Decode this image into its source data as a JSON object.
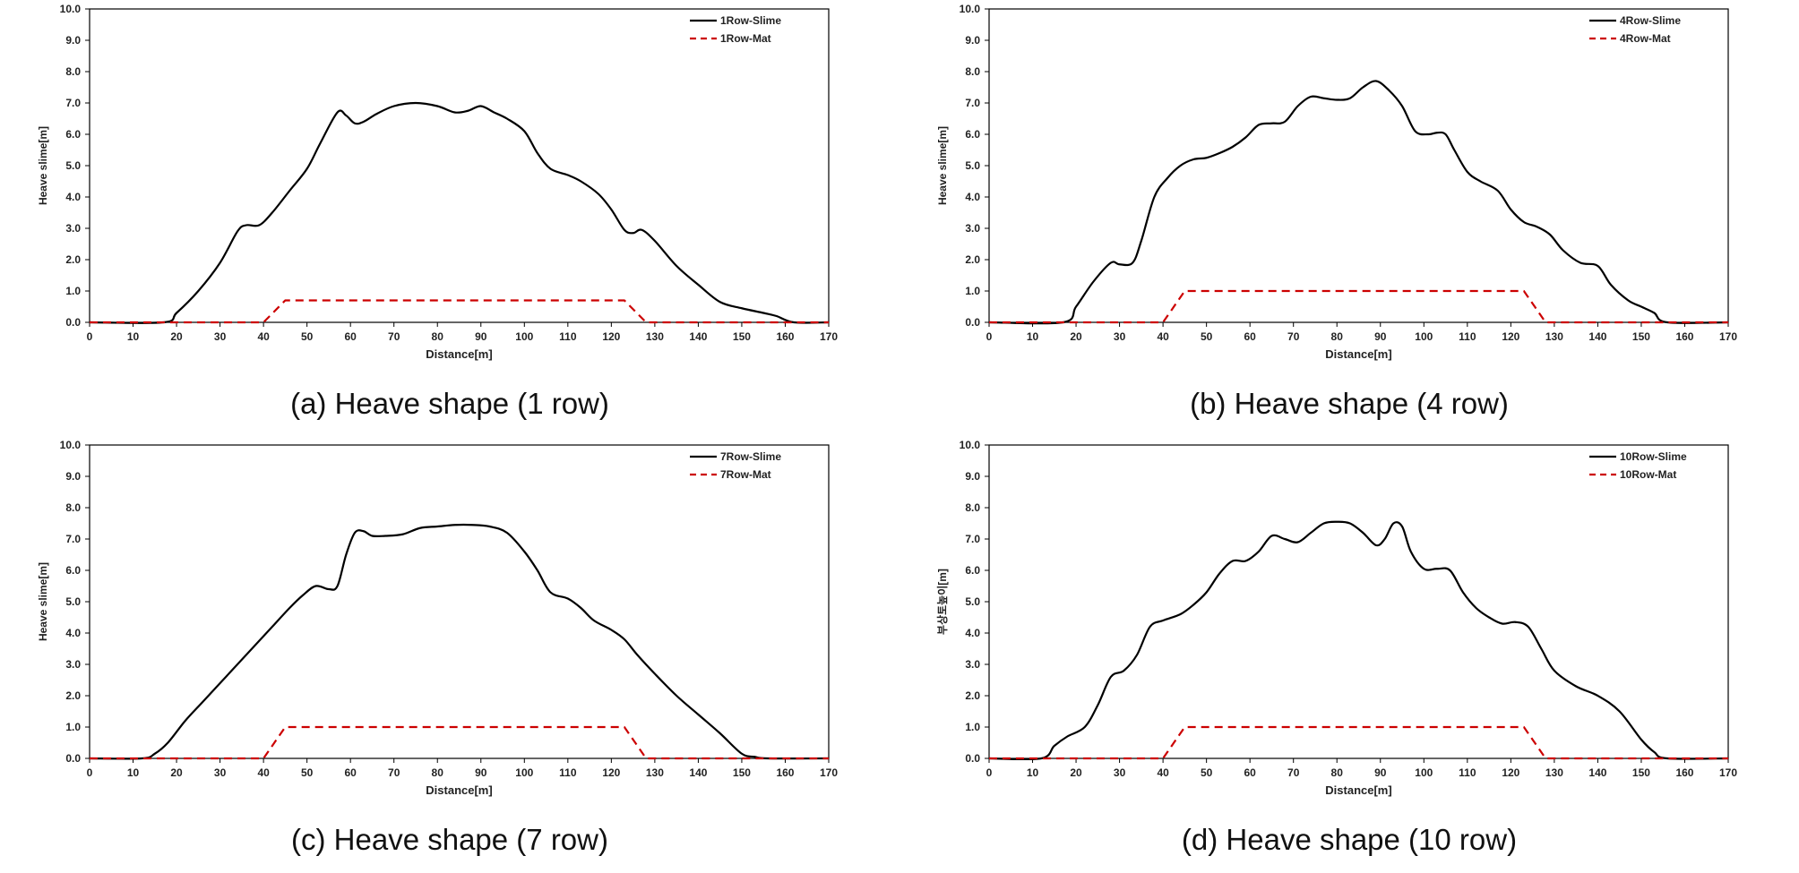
{
  "colors": {
    "slime": "#000000",
    "mat": "#cc0000"
  },
  "chart_data": [
    {
      "type": "line",
      "caption": "(a) Heave shape (1 row)",
      "xlabel": "Distance[m]",
      "ylabel": "Heave slime[m]",
      "xlim": [
        0,
        170
      ],
      "ylim": [
        0,
        10
      ],
      "xticks": [
        "0",
        "10",
        "20",
        "30",
        "40",
        "50",
        "60",
        "70",
        "80",
        "90",
        "100",
        "110",
        "120",
        "130",
        "140",
        "150",
        "160",
        "170"
      ],
      "yticks": [
        "0.0",
        "1.0",
        "2.0",
        "3.0",
        "4.0",
        "5.0",
        "6.0",
        "7.0",
        "8.0",
        "9.0",
        "10.0"
      ],
      "legend_position": "top-right",
      "series": [
        {
          "name": "1Row-Slime",
          "style": "solid",
          "color": "#000000",
          "x": [
            0,
            17,
            20,
            25,
            30,
            34,
            36,
            39,
            42,
            46,
            50,
            53,
            57,
            59,
            61,
            63,
            66,
            70,
            75,
            80,
            84,
            87,
            90,
            93,
            96,
            100,
            103,
            106,
            110,
            113,
            117,
            120,
            123,
            125,
            127,
            130,
            135,
            140,
            145,
            150,
            155,
            158,
            162,
            170
          ],
          "y": [
            0,
            0,
            0.3,
            1.0,
            1.9,
            2.9,
            3.1,
            3.1,
            3.5,
            4.2,
            4.9,
            5.7,
            6.7,
            6.6,
            6.35,
            6.4,
            6.65,
            6.9,
            7.0,
            6.9,
            6.7,
            6.75,
            6.9,
            6.7,
            6.5,
            6.1,
            5.4,
            4.9,
            4.7,
            4.5,
            4.1,
            3.6,
            2.95,
            2.85,
            2.95,
            2.6,
            1.8,
            1.2,
            0.65,
            0.45,
            0.3,
            0.2,
            0,
            0
          ]
        },
        {
          "name": "1Row-Mat",
          "style": "dashed",
          "color": "#cc0000",
          "x": [
            0,
            40,
            45,
            123,
            128,
            170
          ],
          "y": [
            0,
            0,
            0.7,
            0.7,
            0,
            0
          ]
        }
      ]
    },
    {
      "type": "line",
      "caption": "(b) Heave shape (4 row)",
      "xlabel": "Distance[m]",
      "ylabel": "Heave slime[m]",
      "xlim": [
        0,
        170
      ],
      "ylim": [
        0,
        10
      ],
      "xticks": [
        "0",
        "10",
        "20",
        "30",
        "40",
        "50",
        "60",
        "70",
        "80",
        "90",
        "100",
        "110",
        "120",
        "130",
        "140",
        "150",
        "160",
        "170"
      ],
      "yticks": [
        "0.0",
        "1.0",
        "2.0",
        "3.0",
        "4.0",
        "5.0",
        "6.0",
        "7.0",
        "8.0",
        "9.0",
        "10.0"
      ],
      "legend_position": "top-right",
      "series": [
        {
          "name": "4Row-Slime",
          "style": "solid",
          "color": "#000000",
          "x": [
            0,
            17,
            20,
            24,
            28,
            30,
            33,
            35,
            38,
            41,
            44,
            47,
            50,
            53,
            56,
            59,
            62,
            65,
            68,
            71,
            74,
            77,
            80,
            83,
            86,
            89,
            92,
            95,
            98,
            101,
            103,
            105,
            107,
            110,
            113,
            117,
            120,
            123,
            126,
            129,
            132,
            136,
            140,
            143,
            147,
            150,
            153,
            156,
            170
          ],
          "y": [
            0,
            0,
            0.5,
            1.3,
            1.9,
            1.85,
            1.9,
            2.6,
            4.0,
            4.6,
            5.0,
            5.2,
            5.25,
            5.4,
            5.6,
            5.9,
            6.3,
            6.35,
            6.4,
            6.9,
            7.2,
            7.15,
            7.1,
            7.15,
            7.5,
            7.7,
            7.4,
            6.9,
            6.1,
            6.0,
            6.05,
            6.0,
            5.5,
            4.8,
            4.5,
            4.2,
            3.6,
            3.2,
            3.05,
            2.8,
            2.3,
            1.9,
            1.8,
            1.2,
            0.7,
            0.5,
            0.3,
            0,
            0
          ]
        },
        {
          "name": "4Row-Mat",
          "style": "dashed",
          "color": "#cc0000",
          "x": [
            0,
            40,
            45,
            123,
            128,
            170
          ],
          "y": [
            0,
            0,
            1.0,
            1.0,
            0,
            0
          ]
        }
      ]
    },
    {
      "type": "line",
      "caption": "(c) Heave shape (7 row)",
      "xlabel": "Distance[m]",
      "ylabel": "Heave slime[m]",
      "xlim": [
        0,
        170
      ],
      "ylim": [
        0,
        10
      ],
      "xticks": [
        "0",
        "10",
        "20",
        "30",
        "40",
        "50",
        "60",
        "70",
        "80",
        "90",
        "100",
        "110",
        "120",
        "130",
        "140",
        "150",
        "160",
        "170"
      ],
      "yticks": [
        "0.0",
        "1.0",
        "2.0",
        "3.0",
        "4.0",
        "5.0",
        "6.0",
        "7.0",
        "8.0",
        "9.0",
        "10.0"
      ],
      "legend_position": "top-right",
      "series": [
        {
          "name": "7Row-Slime",
          "style": "solid",
          "color": "#000000",
          "x": [
            0,
            12,
            15,
            18,
            22,
            26,
            30,
            34,
            38,
            42,
            46,
            49,
            52,
            55,
            57,
            59,
            61,
            63,
            65,
            68,
            72,
            76,
            80,
            84,
            88,
            92,
            96,
            100,
            103,
            106,
            110,
            113,
            116,
            120,
            123,
            126,
            130,
            135,
            140,
            145,
            150,
            153,
            156,
            170
          ],
          "y": [
            0,
            0,
            0.15,
            0.5,
            1.2,
            1.8,
            2.4,
            3.0,
            3.6,
            4.2,
            4.8,
            5.2,
            5.5,
            5.4,
            5.5,
            6.5,
            7.2,
            7.25,
            7.1,
            7.1,
            7.15,
            7.35,
            7.4,
            7.45,
            7.45,
            7.4,
            7.2,
            6.6,
            6.0,
            5.3,
            5.1,
            4.8,
            4.4,
            4.1,
            3.8,
            3.3,
            2.7,
            2.0,
            1.4,
            0.8,
            0.15,
            0.05,
            0,
            0
          ]
        },
        {
          "name": "7Row-Mat",
          "style": "dashed",
          "color": "#cc0000",
          "x": [
            0,
            40,
            45,
            123,
            128,
            170
          ],
          "y": [
            0,
            0,
            1.0,
            1.0,
            0,
            0
          ]
        }
      ]
    },
    {
      "type": "line",
      "caption": "(d) Heave shape (10 row)",
      "xlabel": "Distance[m]",
      "ylabel": "부상토높이[m]",
      "xlim": [
        0,
        170
      ],
      "ylim": [
        0,
        10
      ],
      "xticks": [
        "0",
        "10",
        "20",
        "30",
        "40",
        "50",
        "60",
        "70",
        "80",
        "90",
        "100",
        "110",
        "120",
        "130",
        "140",
        "150",
        "160",
        "170"
      ],
      "yticks": [
        "0.0",
        "1.0",
        "2.0",
        "3.0",
        "4.0",
        "5.0",
        "6.0",
        "7.0",
        "8.0",
        "9.0",
        "10.0"
      ],
      "legend_position": "top-right",
      "series": [
        {
          "name": "10Row-Slime",
          "style": "solid",
          "color": "#000000",
          "x": [
            0,
            12,
            15,
            18,
            22,
            25,
            28,
            31,
            34,
            37,
            40,
            44,
            47,
            50,
            53,
            56,
            59,
            62,
            65,
            68,
            71,
            74,
            77,
            80,
            83,
            86,
            89,
            91,
            93,
            95,
            97,
            100,
            103,
            106,
            109,
            112,
            115,
            118,
            121,
            124,
            127,
            130,
            135,
            140,
            145,
            150,
            153,
            156,
            170
          ],
          "y": [
            0,
            0,
            0.4,
            0.7,
            1.0,
            1.7,
            2.6,
            2.8,
            3.3,
            4.2,
            4.4,
            4.6,
            4.9,
            5.3,
            5.9,
            6.3,
            6.3,
            6.6,
            7.1,
            7.0,
            6.9,
            7.2,
            7.5,
            7.55,
            7.5,
            7.2,
            6.8,
            7.0,
            7.5,
            7.4,
            6.6,
            6.05,
            6.05,
            6.0,
            5.3,
            4.8,
            4.5,
            4.3,
            4.35,
            4.2,
            3.5,
            2.8,
            2.3,
            2.0,
            1.5,
            0.6,
            0.2,
            0,
            0
          ]
        },
        {
          "name": "10Row-Mat",
          "style": "dashed",
          "color": "#cc0000",
          "x": [
            0,
            40,
            45,
            123,
            128,
            170
          ],
          "y": [
            0,
            0,
            1.0,
            1.0,
            0,
            0
          ]
        }
      ]
    }
  ]
}
